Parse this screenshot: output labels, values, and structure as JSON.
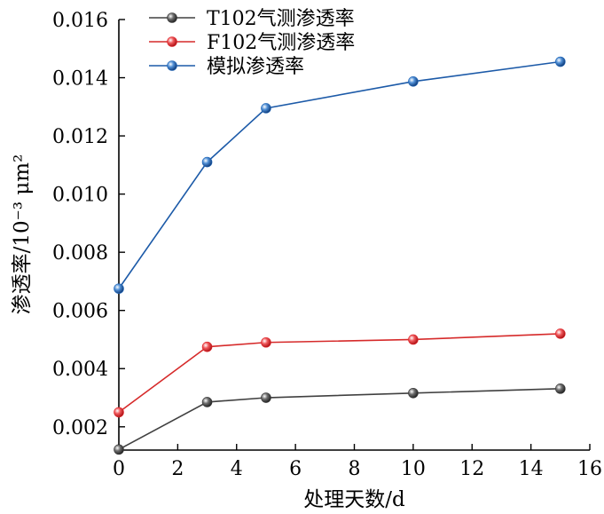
{
  "chart_data": {
    "type": "line",
    "title": "",
    "xlabel": "处理天数/d",
    "ylabel": "渗透率/10⁻³ μm²",
    "xlim": [
      0,
      16
    ],
    "ylim": [
      0.0012,
      0.016
    ],
    "xticks": [
      "0",
      "2",
      "4",
      "6",
      "8",
      "10",
      "12",
      "14",
      "16"
    ],
    "yticks": [
      "0.002",
      "0.004",
      "0.006",
      "0.008",
      "0.010",
      "0.012",
      "0.014",
      "0.016"
    ],
    "grid": false,
    "legend_position": "top-left",
    "x": [
      0,
      3,
      5,
      10,
      15
    ],
    "series": [
      {
        "name": "T102气测渗透率",
        "color": "#404040",
        "marker_color": "#3a3a3a",
        "values": [
          0.00122,
          0.00285,
          0.003,
          0.00316,
          0.00331
        ]
      },
      {
        "name": "F102气测渗透率",
        "color": "#d62a2a",
        "marker_color": "#e0282c",
        "values": [
          0.0025,
          0.00475,
          0.0049,
          0.005,
          0.0052
        ]
      },
      {
        "name": "模拟渗透率",
        "color": "#1c5aa8",
        "marker_color": "#2468b8",
        "values": [
          0.00675,
          0.0111,
          0.01295,
          0.01387,
          0.01455
        ]
      }
    ]
  }
}
